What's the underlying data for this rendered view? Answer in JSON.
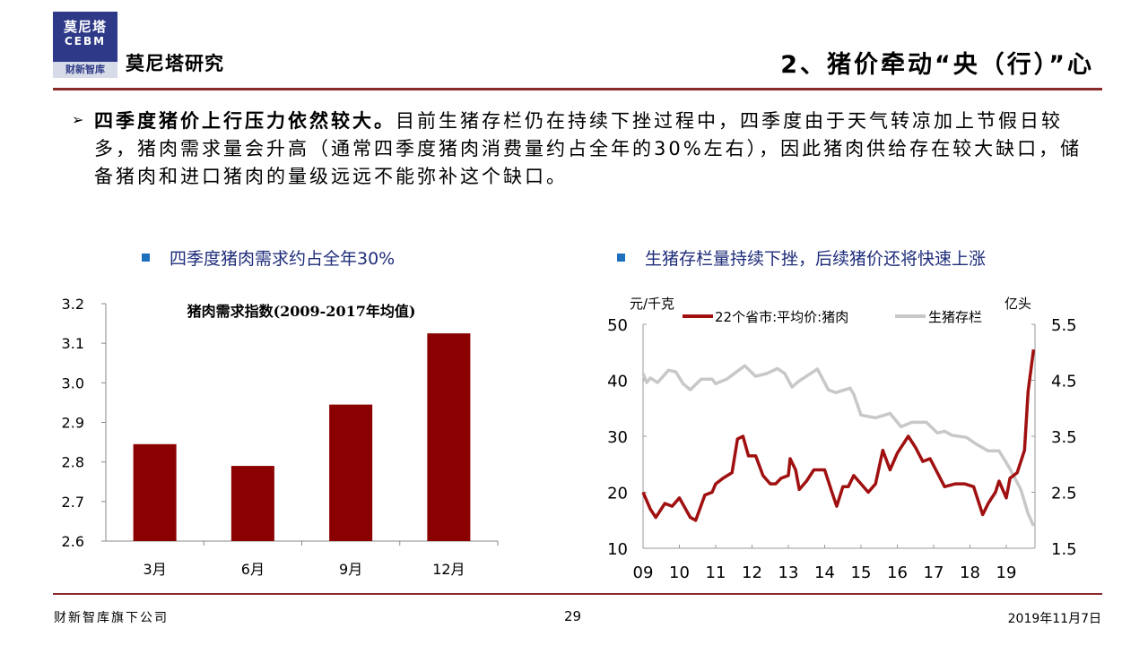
{
  "header": {
    "logo": {
      "line1": "莫尼塔",
      "line2": "CEBM",
      "line3": "财新智库"
    },
    "brand": "莫尼塔研究",
    "section_title": "2、猪价牵动“央（行）”心"
  },
  "body": {
    "bullet_icon": "arrow-bullet-icon",
    "lead": "四季度猪价上行压力依然较大。",
    "text": "目前生猪存栏仍在持续下挫过程中，四季度由于天气转凉加上节假日较多，猪肉需求量会升高（通常四季度猪肉消费量约占全年的30%左右），因此猪肉供给存在较大缺口，储备猪肉和进口猪肉的量级远远不能弥补这个缺口。"
  },
  "footer": {
    "company": "财新智库旗下公司",
    "page": "29",
    "date": "2019年11月7日"
  },
  "colors": {
    "accent": "#8b2a2a",
    "bar": "#8b0000",
    "price_line": "#a01010",
    "inventory_line": "#c8c8c8",
    "heading_blue": "#1f2d7a"
  },
  "chart_data": [
    {
      "type": "bar",
      "heading": "四季度猪肉需求约占全年30%",
      "title": "猪肉需求指数(2009-2017年均值)",
      "categories": [
        "3月",
        "6月",
        "9月",
        "12月"
      ],
      "values": [
        2.845,
        2.79,
        2.945,
        3.125
      ],
      "ylim": [
        2.6,
        3.2
      ],
      "yticks": [
        "2.6",
        "2.7",
        "2.8",
        "2.9",
        "3.0",
        "3.1",
        "3.2"
      ],
      "grid": false
    },
    {
      "type": "line",
      "heading": "生猪存栏量持续下挫，后续猪价还将快速上涨",
      "ylabel_left": "元/千克",
      "ylabel_right": "亿头",
      "ylim_left": [
        10,
        50
      ],
      "ylim_right": [
        1.5,
        5.5
      ],
      "yticks_left": [
        "10",
        "20",
        "30",
        "40",
        "50"
      ],
      "yticks_right": [
        "1.5",
        "2.5",
        "3.5",
        "4.5",
        "5.5"
      ],
      "xticks": [
        "09",
        "10",
        "11",
        "12",
        "13",
        "14",
        "15",
        "16",
        "17",
        "18",
        "19"
      ],
      "legend_position": "top",
      "grid": false,
      "series": [
        {
          "name": "22个省市:平均价:猪肉",
          "axis": "left",
          "x": [
            2009.0,
            2009.2,
            2009.35,
            2009.6,
            2009.8,
            2010.0,
            2010.3,
            2010.45,
            2010.7,
            2010.9,
            2011.0,
            2011.2,
            2011.45,
            2011.6,
            2011.75,
            2011.9,
            2012.1,
            2012.3,
            2012.5,
            2012.65,
            2012.8,
            2013.0,
            2013.05,
            2013.2,
            2013.3,
            2013.5,
            2013.7,
            2014.0,
            2014.2,
            2014.33,
            2014.5,
            2014.65,
            2014.8,
            2015.0,
            2015.2,
            2015.4,
            2015.6,
            2015.8,
            2016.0,
            2016.3,
            2016.5,
            2016.7,
            2016.9,
            2017.1,
            2017.3,
            2017.6,
            2017.85,
            2018.1,
            2018.35,
            2018.5,
            2018.7,
            2018.8,
            2019.0,
            2019.1,
            2019.3,
            2019.5,
            2019.6,
            2019.75
          ],
          "values": [
            20,
            17,
            15.5,
            18,
            17.5,
            19,
            15.5,
            15,
            19.5,
            20,
            21.5,
            22.5,
            23.5,
            29.5,
            30,
            26.5,
            26.5,
            23,
            21.5,
            21.5,
            22.5,
            23,
            26,
            24,
            20.5,
            22,
            24,
            24,
            20,
            17.5,
            21,
            21,
            23,
            21.5,
            20,
            21.5,
            27.5,
            24,
            27,
            30,
            28,
            25.5,
            26,
            23.5,
            21,
            21.5,
            21.5,
            21,
            16,
            18,
            20,
            22,
            19,
            22.5,
            23.5,
            27.5,
            38,
            45.5
          ]
        },
        {
          "name": "生猪存栏",
          "axis": "right",
          "x": [
            2009.0,
            2009.1,
            2009.2,
            2009.4,
            2009.7,
            2009.9,
            2010.1,
            2010.3,
            2010.6,
            2010.9,
            2011.0,
            2011.3,
            2011.8,
            2012.1,
            2012.4,
            2012.7,
            2012.9,
            2013.1,
            2013.3,
            2013.8,
            2014.1,
            2014.3,
            2014.7,
            2014.8,
            2015.0,
            2015.4,
            2015.8,
            2016.1,
            2016.4,
            2016.8,
            2017.1,
            2017.3,
            2017.5,
            2017.9,
            2018.2,
            2018.5,
            2018.8,
            2019.1,
            2019.4,
            2019.6,
            2019.75
          ],
          "values": [
            4.62,
            4.46,
            4.54,
            4.46,
            4.68,
            4.65,
            4.44,
            4.33,
            4.52,
            4.52,
            4.44,
            4.52,
            4.76,
            4.57,
            4.62,
            4.71,
            4.62,
            4.38,
            4.49,
            4.7,
            4.33,
            4.28,
            4.36,
            4.25,
            3.88,
            3.83,
            3.91,
            3.67,
            3.75,
            3.75,
            3.56,
            3.59,
            3.52,
            3.48,
            3.35,
            3.24,
            3.24,
            2.92,
            2.55,
            2.12,
            1.9
          ]
        }
      ]
    }
  ]
}
